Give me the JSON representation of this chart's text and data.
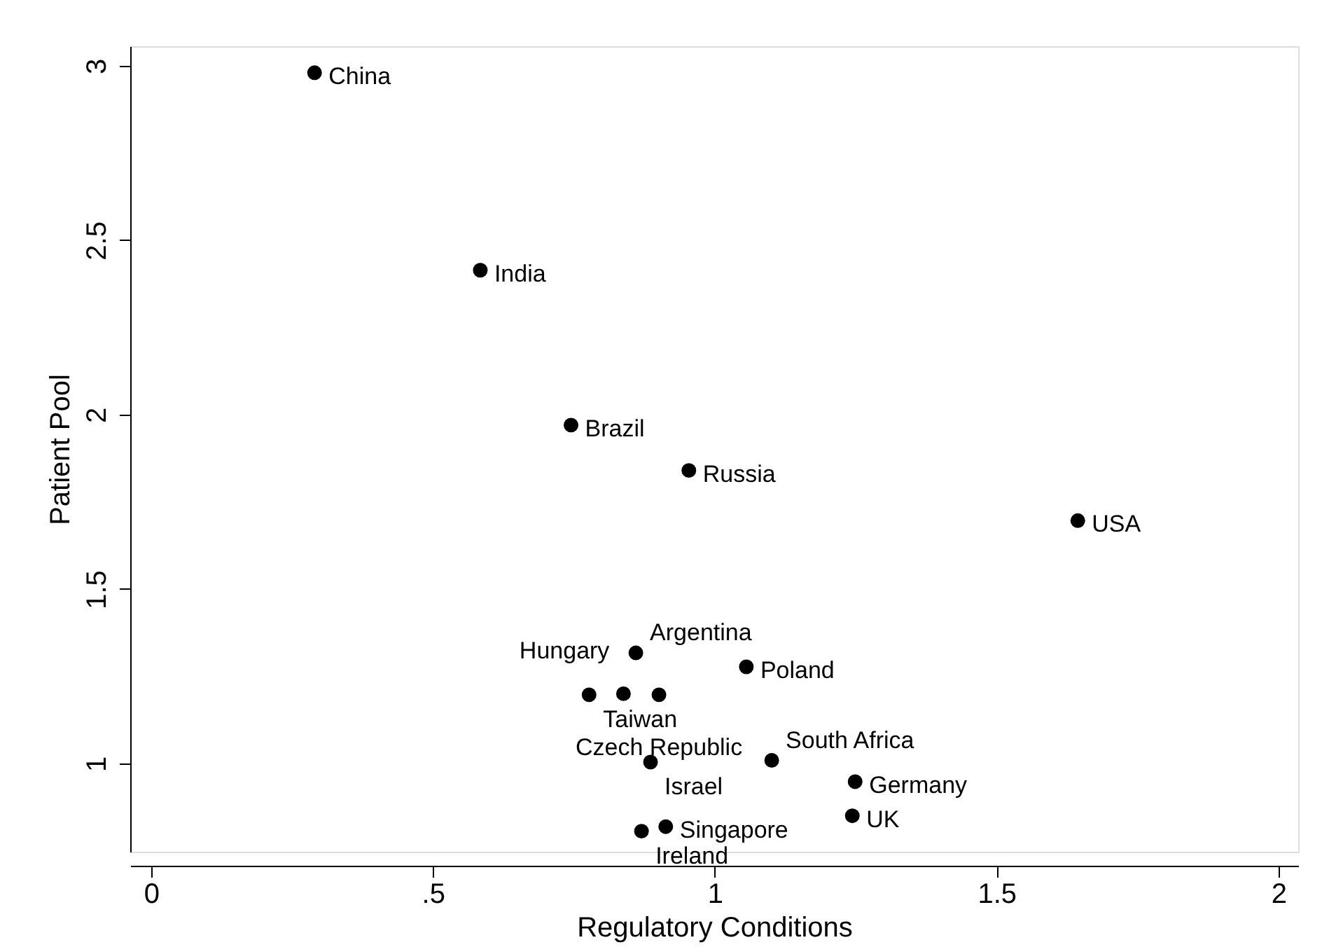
{
  "chart_data": {
    "type": "scatter",
    "xlabel": "Regulatory Conditions",
    "ylabel": "Patient Pool",
    "x": [
      0.29,
      0.584,
      0.745,
      0.954,
      1.644,
      0.86,
      1.056,
      0.777,
      0.838,
      0.901,
      0.886,
      1.101,
      1.249,
      1.244,
      0.87,
      0.913
    ],
    "series": [
      {
        "color": "#000000",
        "values": [
          2.98,
          2.414,
          1.97,
          1.84,
          1.696,
          1.317,
          1.277,
          1.197,
          1.2,
          1.197,
          1.004,
          1.009,
          0.948,
          0.85,
          0.806,
          0.819
        ]
      }
    ],
    "annotations": [
      {
        "text": "China",
        "x": 0.29,
        "y": 2.98
      },
      {
        "text": "India",
        "x": 0.584,
        "y": 2.414
      },
      {
        "text": "Brazil",
        "x": 0.745,
        "y": 1.97
      },
      {
        "text": "Russia",
        "x": 0.954,
        "y": 1.84
      },
      {
        "text": "USA",
        "x": 1.644,
        "y": 1.696
      },
      {
        "text": "Argentina",
        "x": 0.86,
        "y": 1.317
      },
      {
        "text": "Poland",
        "x": 1.056,
        "y": 1.277
      },
      {
        "text": "Taiwan",
        "x": 0.777,
        "y": 1.197
      },
      {
        "text": "Hungary",
        "x": 0.838,
        "y": 1.2
      },
      {
        "text": "Czech Republic",
        "x": 0.901,
        "y": 1.197
      },
      {
        "text": "Israel",
        "x": 0.886,
        "y": 1.004
      },
      {
        "text": "South Africa",
        "x": 1.101,
        "y": 1.009
      },
      {
        "text": "Germany",
        "x": 1.249,
        "y": 0.948
      },
      {
        "text": "UK",
        "x": 1.244,
        "y": 0.85
      },
      {
        "text": "Ireland",
        "x": 0.87,
        "y": 0.806
      },
      {
        "text": "Singapore",
        "x": 0.913,
        "y": 0.819
      }
    ],
    "xlim": [
      -0.037,
      2.035
    ],
    "ylim": [
      0.747,
      3.056
    ],
    "xticks": [
      0,
      {
        "value": 0.5,
        "label": ".5"
      },
      1,
      1.5,
      2
    ],
    "yticks": [
      1,
      1.5,
      2,
      2.5,
      3
    ],
    "grid": false,
    "marker": "circle"
  }
}
